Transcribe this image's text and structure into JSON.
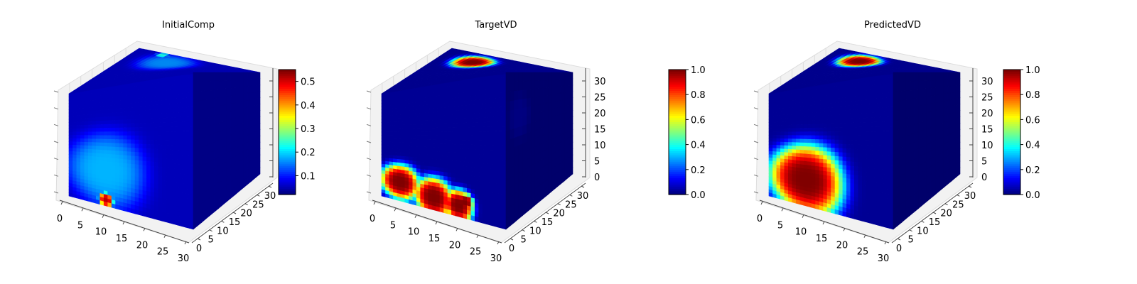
{
  "figure": {
    "colormap": "jet",
    "background": "#ffffff"
  },
  "chart_data": [
    {
      "type": "heatmap",
      "subtype": "3d-voxel",
      "title": "InitialComp",
      "x_ticks": [
        "0",
        "5",
        "10",
        "15",
        "20",
        "25",
        "30"
      ],
      "y_ticks": [
        "0",
        "5",
        "10",
        "15",
        "20",
        "25",
        "30"
      ],
      "z_ticks": [],
      "colorbar": {
        "min": 0.02,
        "max": 0.55,
        "ticks": [
          "0.1",
          "0.2",
          "0.3",
          "0.4",
          "0.5"
        ],
        "tick_values": [
          0.1,
          0.2,
          0.3,
          0.4,
          0.5
        ]
      },
      "field": {
        "base": 0.05,
        "front_blobs": [
          {
            "u": 0.3,
            "v": 0.3,
            "r": 0.32,
            "val": 0.18
          },
          {
            "u": 0.3,
            "v": 0.05,
            "r": 0.06,
            "val": 0.52
          }
        ],
        "top_blobs": [
          {
            "u": 0.35,
            "v": 0.78,
            "r": 0.22,
            "val": 0.16
          },
          {
            "u": 0.22,
            "v": 0.95,
            "r": 0.05,
            "val": 0.24
          }
        ],
        "side_blobs": []
      }
    },
    {
      "type": "heatmap",
      "subtype": "3d-voxel",
      "title": "TargetVD",
      "x_ticks": [
        "0",
        "5",
        "10",
        "15",
        "20",
        "25",
        "30"
      ],
      "y_ticks": [
        "0",
        "5",
        "10",
        "15",
        "20",
        "25",
        "30"
      ],
      "z_ticks": [
        "0",
        "5",
        "10",
        "15",
        "20",
        "25",
        "30"
      ],
      "colorbar": {
        "min": 0.0,
        "max": 1.0,
        "ticks": [
          "0.0",
          "0.2",
          "0.4",
          "0.6",
          "0.8",
          "1.0"
        ],
        "tick_values": [
          0,
          0.2,
          0.4,
          0.6,
          0.8,
          1.0
        ]
      },
      "field": {
        "base": 0.02,
        "front_blobs": [
          {
            "u": 0.15,
            "v": 0.17,
            "r": 0.16,
            "val": 1.0
          },
          {
            "u": 0.42,
            "v": 0.1,
            "r": 0.16,
            "val": 1.0
          },
          {
            "u": 0.62,
            "v": 0.08,
            "r": 0.12,
            "val": 1.0
          },
          {
            "u": 0.68,
            "v": 0.12,
            "r": 0.06,
            "val": 1.0
          }
        ],
        "top_blobs": [
          {
            "u": 0.3,
            "v": 0.78,
            "r": 0.16,
            "val": 1.0
          }
        ],
        "side_blobs": [
          {
            "u": 0.2,
            "v": 0.3,
            "r": 0.15,
            "val": 0.05
          }
        ]
      }
    },
    {
      "type": "heatmap",
      "subtype": "3d-voxel",
      "title": "PredictedVD",
      "x_ticks": [
        "0",
        "5",
        "10",
        "15",
        "20",
        "25",
        "30"
      ],
      "y_ticks": [
        "0",
        "5",
        "10",
        "15",
        "20",
        "25",
        "30"
      ],
      "z_ticks": [
        "0",
        "5",
        "10",
        "15",
        "20",
        "25",
        "30"
      ],
      "colorbar": {
        "min": 0.0,
        "max": 1.0,
        "ticks": [
          "0.0",
          "0.2",
          "0.4",
          "0.6",
          "0.8",
          "1.0"
        ],
        "tick_values": [
          0,
          0.2,
          0.4,
          0.6,
          0.8,
          1.0
        ]
      },
      "field": {
        "base": 0.02,
        "front_blobs": [
          {
            "u": 0.3,
            "v": 0.22,
            "r": 0.3,
            "val": 1.0
          }
        ],
        "top_blobs": [
          {
            "u": 0.28,
            "v": 0.8,
            "r": 0.16,
            "val": 1.0
          }
        ],
        "side_blobs": []
      }
    }
  ]
}
